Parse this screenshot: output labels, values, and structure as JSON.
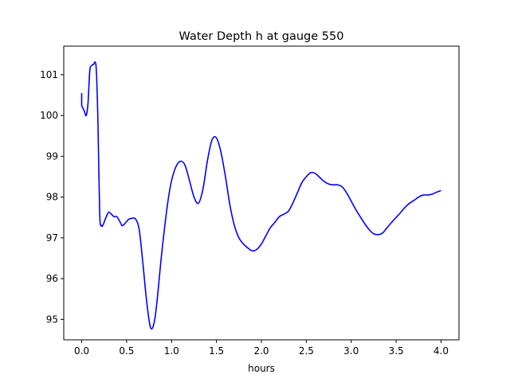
{
  "chart_data": {
    "type": "line",
    "title": "Water Depth h at gauge 550",
    "xlabel": "hours",
    "ylabel": "",
    "xlim": [
      -0.2,
      4.2
    ],
    "ylim": [
      94.5,
      101.7
    ],
    "x_ticks": [
      0.0,
      0.5,
      1.0,
      1.5,
      2.0,
      2.5,
      3.0,
      3.5,
      4.0
    ],
    "x_tick_labels": [
      "0.0",
      "0.5",
      "1.0",
      "1.5",
      "2.0",
      "2.5",
      "3.0",
      "3.5",
      "4.0"
    ],
    "y_ticks": [
      95,
      96,
      97,
      98,
      99,
      100,
      101
    ],
    "y_tick_labels": [
      "95",
      "96",
      "97",
      "98",
      "99",
      "100",
      "101"
    ],
    "grid": false,
    "series": [
      {
        "color": "#0000ff",
        "x": [
          0.0,
          0.0,
          0.01,
          0.03,
          0.05,
          0.07,
          0.09,
          0.11,
          0.13,
          0.16,
          0.18,
          0.2,
          0.22,
          0.24,
          0.27,
          0.3,
          0.33,
          0.36,
          0.39,
          0.42,
          0.45,
          0.48,
          0.52,
          0.56,
          0.6,
          0.64,
          0.68,
          0.72,
          0.76,
          0.79,
          0.82,
          0.85,
          0.88,
          0.92,
          0.96,
          1.0,
          1.05,
          1.1,
          1.15,
          1.2,
          1.25,
          1.3,
          1.35,
          1.4,
          1.45,
          1.5,
          1.55,
          1.6,
          1.65,
          1.7,
          1.75,
          1.8,
          1.85,
          1.9,
          1.95,
          2.0,
          2.05,
          2.1,
          2.15,
          2.2,
          2.25,
          2.3,
          2.35,
          2.4,
          2.45,
          2.5,
          2.55,
          2.6,
          2.65,
          2.7,
          2.75,
          2.8,
          2.85,
          2.9,
          2.95,
          3.0,
          3.05,
          3.1,
          3.15,
          3.2,
          3.25,
          3.3,
          3.35,
          3.4,
          3.45,
          3.5,
          3.55,
          3.6,
          3.65,
          3.7,
          3.75,
          3.8,
          3.85,
          3.9,
          3.95,
          4.0
        ],
        "y": [
          100.55,
          100.25,
          100.2,
          100.1,
          100.0,
          100.3,
          101.1,
          101.22,
          101.25,
          101.2,
          99.9,
          97.6,
          97.3,
          97.33,
          97.5,
          97.63,
          97.58,
          97.52,
          97.52,
          97.42,
          97.3,
          97.35,
          97.45,
          97.48,
          97.46,
          97.2,
          96.4,
          95.5,
          94.85,
          94.8,
          95.1,
          95.7,
          96.4,
          97.2,
          97.9,
          98.4,
          98.75,
          98.88,
          98.78,
          98.4,
          98.0,
          97.85,
          98.2,
          98.9,
          99.4,
          99.45,
          99.1,
          98.5,
          97.8,
          97.3,
          97.0,
          96.85,
          96.75,
          96.68,
          96.72,
          96.85,
          97.05,
          97.25,
          97.38,
          97.52,
          97.58,
          97.65,
          97.85,
          98.1,
          98.35,
          98.5,
          98.6,
          98.58,
          98.48,
          98.38,
          98.32,
          98.3,
          98.3,
          98.25,
          98.1,
          97.9,
          97.7,
          97.52,
          97.35,
          97.2,
          97.1,
          97.08,
          97.12,
          97.25,
          97.38,
          97.5,
          97.62,
          97.75,
          97.85,
          97.92,
          98.0,
          98.05,
          98.05,
          98.07,
          98.12,
          98.16
        ]
      }
    ]
  }
}
